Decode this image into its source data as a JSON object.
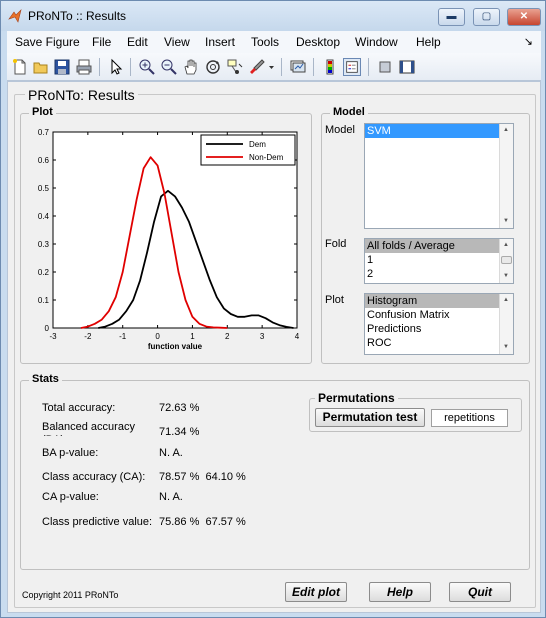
{
  "window": {
    "title": "PRoNTo :: Results",
    "min_label": "▬",
    "max_label": "▢",
    "close_label": "✕"
  },
  "menu": {
    "items": [
      "Save Figure",
      "File",
      "Edit",
      "View",
      "Insert",
      "Tools",
      "Desktop",
      "Window",
      "Help"
    ],
    "dock": "↘"
  },
  "toolbar_icons": [
    "new-file-icon",
    "open-file-icon",
    "save-icon",
    "print-icon",
    "select-arrow-icon",
    "zoom-in-icon",
    "zoom-out-icon",
    "pan-hand-icon",
    "rotate-3d-icon",
    "data-cursor-icon",
    "brush-icon",
    "brush-dropdown-icon",
    "link-plot-icon",
    "colorbar-icon",
    "legend-icon",
    "hide-plot-tools-icon",
    "show-plot-tools-icon"
  ],
  "panel": {
    "title": "PRoNTo: Results"
  },
  "plot": {
    "group_title": "Plot",
    "xlabel": "function value",
    "legend": [
      "Dem",
      "Non-Dem"
    ],
    "series_colors": [
      "#000000",
      "#e00000"
    ]
  },
  "chart_data": {
    "type": "line",
    "xlabel": "function value",
    "ylabel": "",
    "xlim": [
      -3,
      4
    ],
    "ylim": [
      0,
      0.7
    ],
    "xticks": [
      "-3",
      "-2",
      "-1",
      "0",
      "1",
      "2",
      "3",
      "4"
    ],
    "yticks": [
      "0",
      "0.1",
      "0.2",
      "0.3",
      "0.4",
      "0.5",
      "0.6",
      "0.7"
    ],
    "legend_position": "top-right",
    "grid": false,
    "series": [
      {
        "name": "Dem",
        "color": "#000000",
        "x": [
          -1.7,
          -1.5,
          -1.3,
          -1.1,
          -0.9,
          -0.7,
          -0.5,
          -0.3,
          -0.1,
          0.1,
          0.3,
          0.5,
          0.7,
          0.9,
          1.1,
          1.3,
          1.5,
          1.7,
          1.9,
          2.1,
          2.3,
          2.5,
          2.7,
          2.9,
          3.1,
          3.3,
          3.5,
          3.7,
          3.9
        ],
        "y": [
          0.0,
          0.005,
          0.015,
          0.03,
          0.06,
          0.1,
          0.17,
          0.27,
          0.38,
          0.47,
          0.49,
          0.47,
          0.43,
          0.38,
          0.31,
          0.24,
          0.17,
          0.11,
          0.07,
          0.05,
          0.04,
          0.04,
          0.045,
          0.045,
          0.035,
          0.02,
          0.01,
          0.004,
          0.0
        ]
      },
      {
        "name": "Non-Dem",
        "color": "#e00000",
        "x": [
          -2.2,
          -2.0,
          -1.8,
          -1.6,
          -1.4,
          -1.2,
          -1.0,
          -0.8,
          -0.6,
          -0.4,
          -0.2,
          0.0,
          0.2,
          0.4,
          0.6,
          0.8,
          1.0,
          1.2,
          1.4,
          1.6,
          1.8,
          2.0
        ],
        "y": [
          0.0,
          0.005,
          0.015,
          0.03,
          0.06,
          0.11,
          0.2,
          0.33,
          0.46,
          0.57,
          0.61,
          0.58,
          0.48,
          0.34,
          0.2,
          0.1,
          0.04,
          0.015,
          0.005,
          0.002,
          0.001,
          0.0
        ]
      }
    ]
  },
  "model": {
    "group_title": "Model",
    "model_label": "Model",
    "model_items": [
      "SVM"
    ],
    "fold_label": "Fold",
    "fold_items": [
      "All folds / Average",
      "1",
      "2"
    ],
    "plot_label": "Plot",
    "plot_items": [
      "Histogram",
      "Confusion Matrix",
      "Predictions",
      "ROC"
    ]
  },
  "stats": {
    "group_title": "Stats",
    "total_accuracy_label": "Total accuracy:",
    "total_accuracy_value": "72.63 %",
    "balanced_accuracy_label": "Balanced accuracy (BA):",
    "balanced_accuracy_value": "71.34 %",
    "ba_pvalue_label": "BA p-value:",
    "ba_pvalue_value": "N. A.",
    "class_accuracy_label": "Class accuracy (CA):",
    "class_accuracy_value": "78.57 %  64.10 %",
    "ca_pvalue_label": "CA p-value:",
    "ca_pvalue_value": "N. A.",
    "class_predictive_label": "Class predictive value:",
    "class_predictive_value": "75.86 %  67.57 %"
  },
  "permutations": {
    "group_title": "Permutations",
    "button_label": "Permutation test",
    "repetitions_value": "repetitions"
  },
  "footer": {
    "copyright": "Copyright 2011 PRoNTo",
    "edit_plot": "Edit plot",
    "help": "Help",
    "quit": "Quit"
  }
}
